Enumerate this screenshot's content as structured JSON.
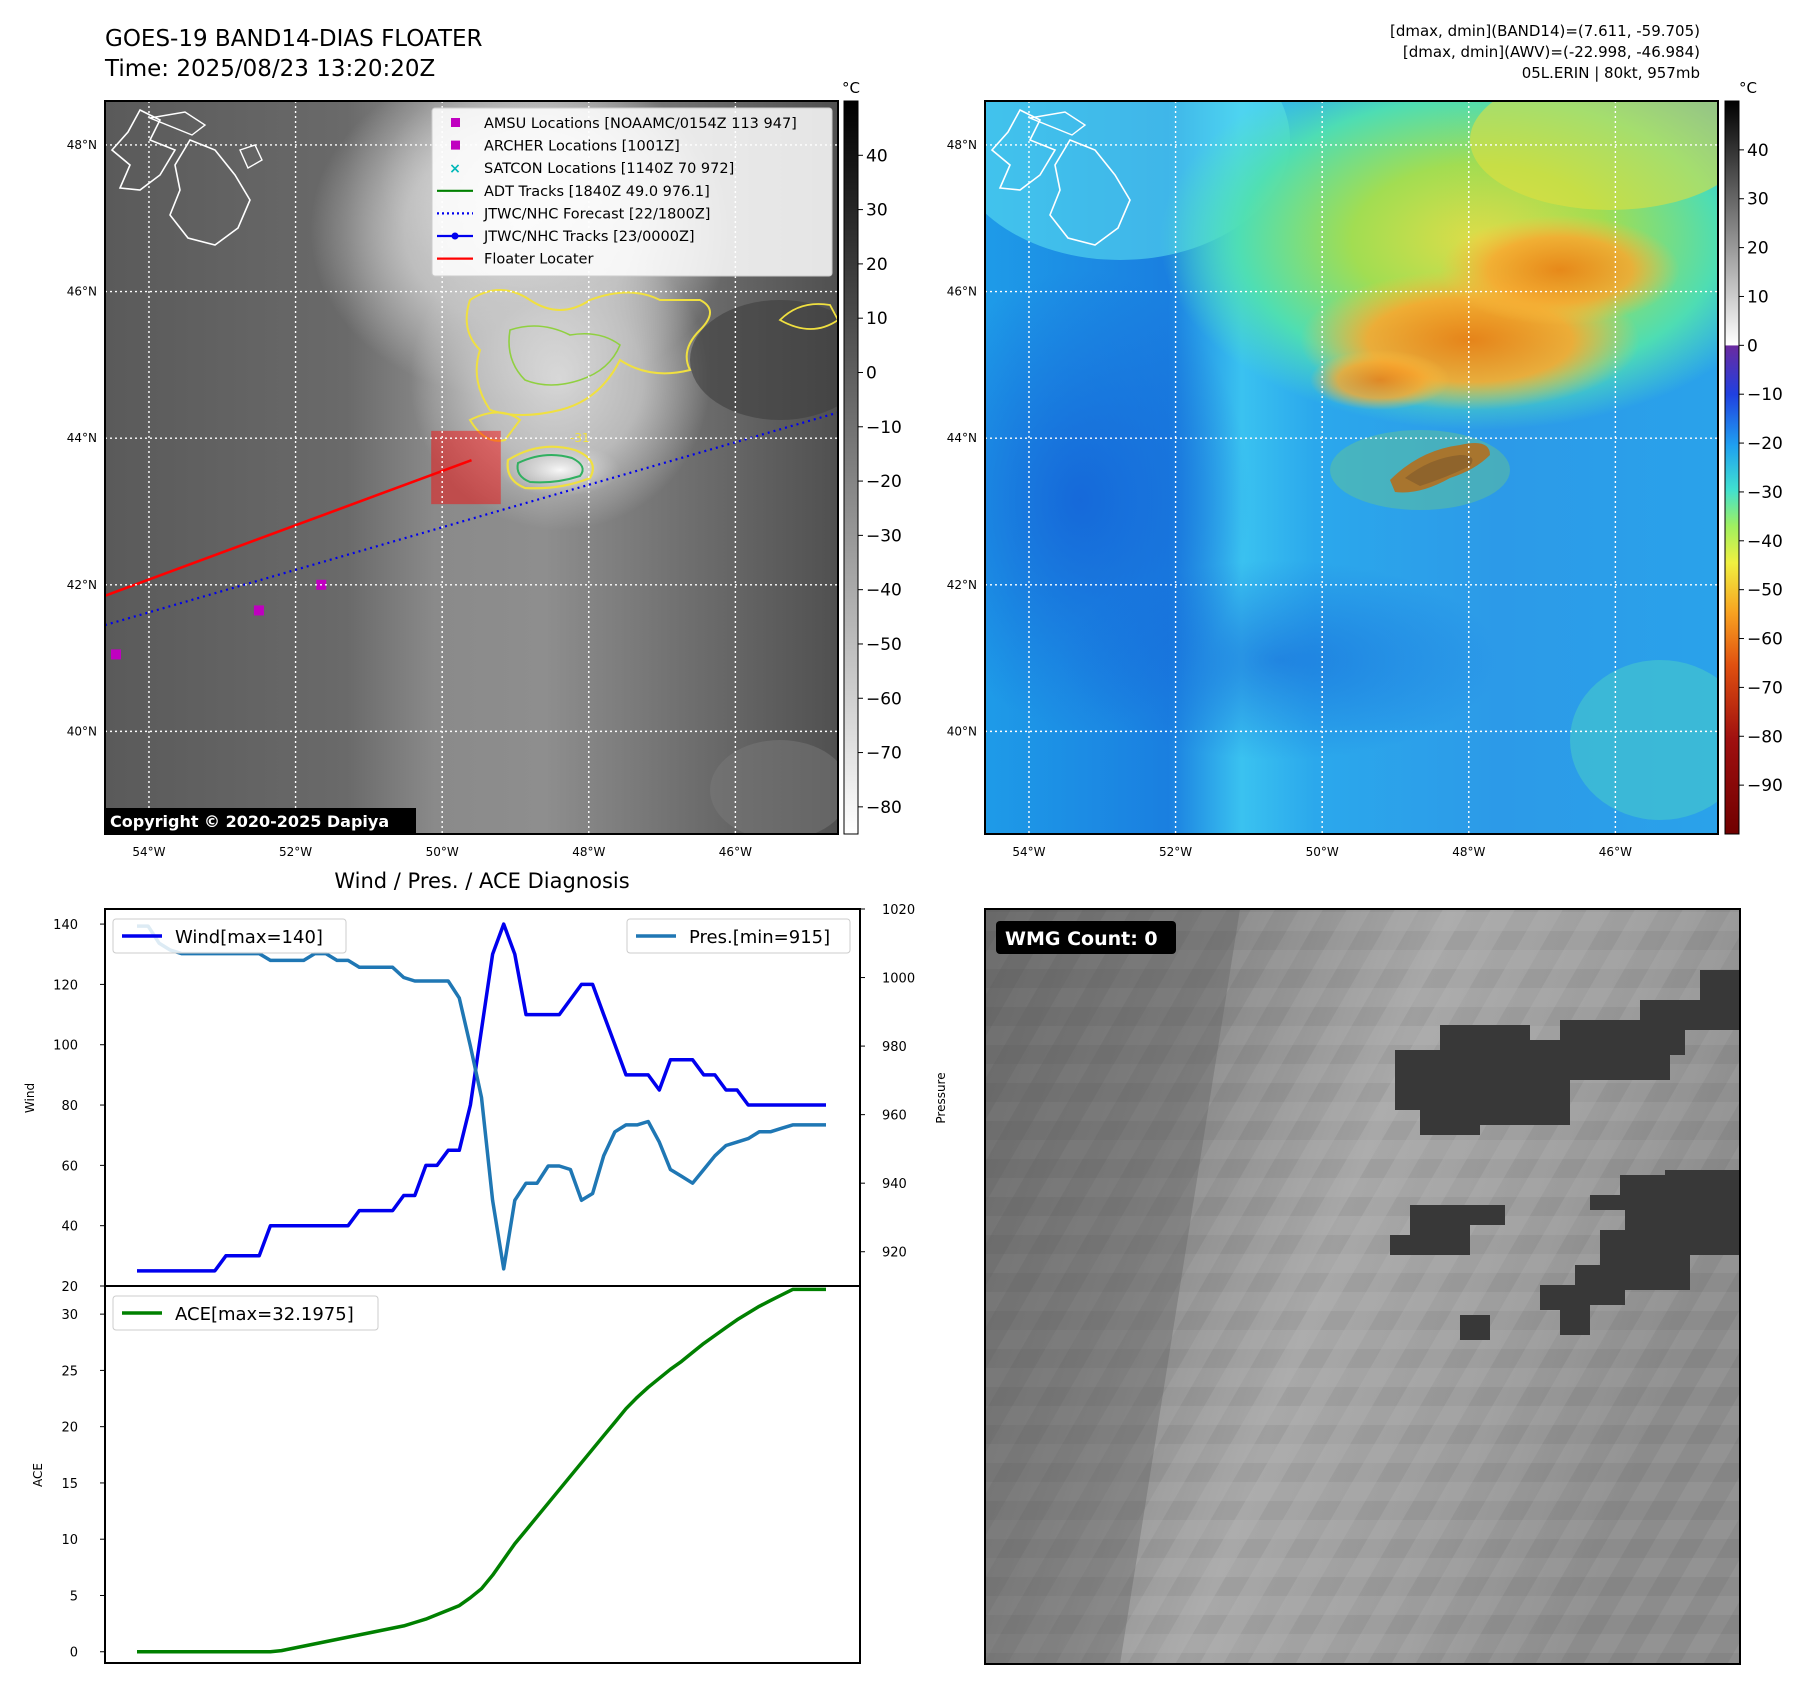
{
  "header": {
    "title": "GOES-19 BAND14-DIAS FLOATER",
    "time": "Time: 2025/08/23 13:20:20Z",
    "info": [
      "[dmax, dmin](BAND14)=(7.611, -59.705)",
      "[dmax, dmin](AWV)=(-22.998, -46.984)",
      "05L.ERIN | 80kt, 957mb"
    ]
  },
  "map_axes": {
    "lat_ticks": [
      "48°N",
      "46°N",
      "44°N",
      "42°N",
      "40°N"
    ],
    "lon_ticks": [
      "54°W",
      "52°W",
      "50°W",
      "48°W",
      "46°W"
    ],
    "lat_values": [
      48,
      46,
      44,
      42,
      40
    ],
    "lon_values": [
      -54,
      -52,
      -50,
      -48,
      -46
    ],
    "lat_range": [
      38.6,
      48.6
    ],
    "lon_range": [
      -54.6,
      -44.6
    ]
  },
  "ir_panel": {
    "legend": [
      {
        "label": "AMSU Locations [NOAAMC/0154Z 113 947]",
        "marker": "square",
        "color": "#c000c0"
      },
      {
        "label": "ARCHER Locations [1001Z]",
        "marker": "square",
        "color": "#c000c0"
      },
      {
        "label": "SATCON Locations [1140Z 70 972]",
        "marker": "x",
        "color": "#00b8b8"
      },
      {
        "label": "ADT Tracks [1840Z 49.0 976.1]",
        "marker": "line",
        "color": "#008000"
      },
      {
        "label": "JTWC/NHC Forecast [22/1800Z]",
        "marker": "dotted",
        "color": "#0000ee"
      },
      {
        "label": "JTWC/NHC Tracks [23/0000Z]",
        "marker": "dotline",
        "color": "#0000ee"
      },
      {
        "label": "Floater Locater",
        "marker": "line",
        "color": "#ff0000"
      }
    ],
    "colorbar_unit": "°C",
    "colorbar_ticks": [
      "40",
      "30",
      "20",
      "10",
      "0",
      "−10",
      "−20",
      "−30",
      "−40",
      "−50",
      "−60",
      "−70",
      "−80"
    ],
    "colorbar_values": [
      40,
      30,
      20,
      10,
      0,
      -10,
      -20,
      -30,
      -40,
      -50,
      -60,
      -70,
      -80
    ],
    "colorbar_range": [
      -85,
      50
    ],
    "copyright": "Copyright © 2020-2025 Dapiya",
    "floater_track": [
      [
        -54.6,
        41.85
      ],
      [
        -49.6,
        43.7
      ]
    ],
    "forecast_track": [
      [
        -54.6,
        41.45
      ],
      [
        -44.6,
        44.35
      ]
    ],
    "floater_box": {
      "lon": [
        -50.15,
        -49.2
      ],
      "lat": [
        43.1,
        44.1
      ]
    },
    "points": [
      {
        "type": "amsu",
        "lon": -54.45,
        "lat": 41.05
      },
      {
        "type": "archer",
        "lon": -52.5,
        "lat": 41.65
      },
      {
        "type": "archer",
        "lon": -51.65,
        "lat": 42.0
      }
    ],
    "contour_label": "-31"
  },
  "wv_panel": {
    "colorbar_unit": "°C",
    "colorbar_ticks": [
      "40",
      "30",
      "20",
      "10",
      "0",
      "−10",
      "−20",
      "−30",
      "−40",
      "−50",
      "−60",
      "−70",
      "−80",
      "−90"
    ],
    "colorbar_values": [
      40,
      30,
      20,
      10,
      0,
      -10,
      -20,
      -30,
      -40,
      -50,
      -60,
      -70,
      -80,
      -90
    ],
    "colorbar_range": [
      -100,
      50
    ]
  },
  "chart_data": [
    {
      "type": "line",
      "title": "Wind / Pres. / ACE Diagnosis",
      "ylabel": "Wind",
      "ylabel_right": "Pressure",
      "ylim": [
        20,
        145
      ],
      "ylim_right": [
        910,
        1020
      ],
      "y_ticks": [
        20,
        40,
        60,
        80,
        100,
        120,
        140
      ],
      "y_ticks_right": [
        920,
        940,
        960,
        980,
        1000,
        1020
      ],
      "x": [
        0,
        1,
        2,
        3,
        4,
        5,
        6,
        7,
        8,
        9,
        10,
        11,
        12,
        13,
        14,
        15,
        16,
        17,
        18,
        19,
        20,
        21,
        22,
        23,
        24,
        25,
        26,
        27,
        28,
        29,
        30,
        31,
        32,
        33,
        34,
        35,
        36,
        37,
        38,
        39,
        40,
        41,
        42,
        43,
        44,
        45,
        46,
        47,
        48,
        49,
        50,
        51,
        52,
        53,
        54,
        55,
        56,
        57,
        58,
        59,
        60,
        61,
        62
      ],
      "series": [
        {
          "name": "Wind[max=140]",
          "axis": "left",
          "color": "#0000ee",
          "values": [
            25,
            25,
            25,
            25,
            25,
            25,
            25,
            25,
            30,
            30,
            30,
            30,
            40,
            40,
            40,
            40,
            40,
            40,
            40,
            40,
            45,
            45,
            45,
            45,
            50,
            50,
            60,
            60,
            65,
            65,
            80,
            105,
            130,
            140,
            130,
            110,
            110,
            110,
            110,
            115,
            120,
            120,
            110,
            100,
            90,
            90,
            90,
            85,
            95,
            95,
            95,
            90,
            90,
            85,
            85,
            80,
            80,
            80,
            80,
            80,
            80,
            80,
            80
          ]
        },
        {
          "name": "Pres.[min=915]",
          "axis": "right",
          "color": "#1f77b4",
          "values": [
            1015,
            1015,
            1010,
            1008,
            1007,
            1007,
            1007,
            1007,
            1007,
            1007,
            1007,
            1007,
            1005,
            1005,
            1005,
            1005,
            1007,
            1007,
            1005,
            1005,
            1003,
            1003,
            1003,
            1003,
            1000,
            999,
            999,
            999,
            999,
            994,
            980,
            965,
            935,
            915,
            935,
            940,
            940,
            945,
            945,
            944,
            935,
            937,
            948,
            955,
            957,
            957,
            958,
            952,
            944,
            942,
            940,
            944,
            948,
            951,
            952,
            953,
            955,
            955,
            956,
            957,
            957,
            957,
            957
          ]
        }
      ]
    },
    {
      "type": "line",
      "ylabel": "ACE",
      "ylim": [
        -1,
        32.5
      ],
      "y_ticks": [
        0,
        5,
        10,
        15,
        20,
        25,
        30
      ],
      "x": [
        0,
        1,
        2,
        3,
        4,
        5,
        6,
        7,
        8,
        9,
        10,
        11,
        12,
        13,
        14,
        15,
        16,
        17,
        18,
        19,
        20,
        21,
        22,
        23,
        24,
        25,
        26,
        27,
        28,
        29,
        30,
        31,
        32,
        33,
        34,
        35,
        36,
        37,
        38,
        39,
        40,
        41,
        42,
        43,
        44,
        45,
        46,
        47,
        48,
        49,
        50,
        51,
        52,
        53,
        54,
        55,
        56,
        57,
        58,
        59,
        60,
        61,
        62
      ],
      "series": [
        {
          "name": "ACE[max=32.1975]",
          "color": "#008000",
          "values": [
            0,
            0,
            0,
            0,
            0,
            0,
            0,
            0,
            0,
            0,
            0,
            0,
            0,
            0.1,
            0.3,
            0.5,
            0.7,
            0.9,
            1.1,
            1.3,
            1.5,
            1.7,
            1.9,
            2.1,
            2.3,
            2.6,
            2.9,
            3.3,
            3.7,
            4.1,
            4.8,
            5.6,
            6.8,
            8.2,
            9.6,
            10.8,
            12.0,
            13.2,
            14.4,
            15.6,
            16.8,
            18.0,
            19.2,
            20.4,
            21.6,
            22.6,
            23.5,
            24.3,
            25.1,
            25.8,
            26.6,
            27.4,
            28.1,
            28.8,
            29.5,
            30.1,
            30.7,
            31.2,
            31.7,
            32.2,
            32.2,
            32.2,
            32.2
          ]
        }
      ]
    }
  ],
  "wmg_panel": {
    "badge": "WMG Count: 0"
  }
}
